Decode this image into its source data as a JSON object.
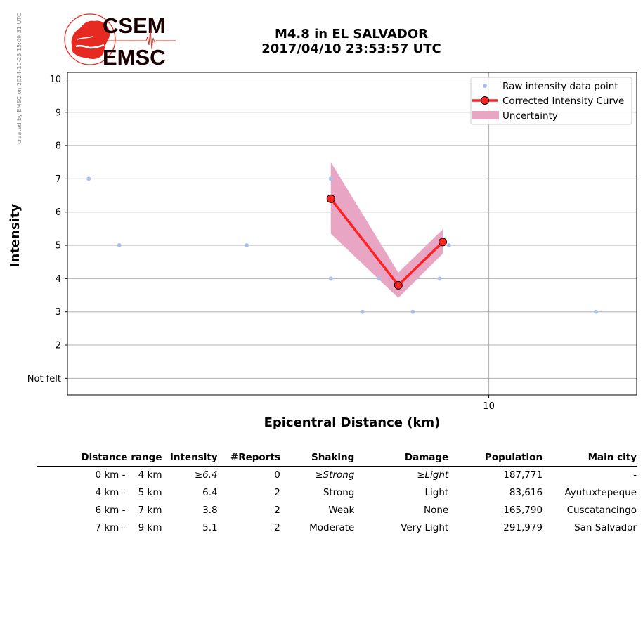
{
  "watermark": "created by EMSC on 2024-10-23 15:09:31 UTC",
  "logo": {
    "line1": "CSEM",
    "line2": "EMSC"
  },
  "header": {
    "title_line1": "M4.8 in EL SALVADOR",
    "title_line2": "2017/04/10 23:53:57 UTC"
  },
  "colors": {
    "raw_points": "#aec0ea",
    "curve": "#ff2020",
    "uncertainty": "#e8a6c4",
    "grid": "#b0b0b0",
    "logo_red": "#e62a22"
  },
  "chart_data": {
    "type": "line",
    "xlabel": "Epicentral Distance (km)",
    "ylabel": "Intensity",
    "x_scale": "log",
    "xlim": [
      2.03,
      17.5
    ],
    "ylim": [
      0.5,
      10.2
    ],
    "x_ticks": [
      {
        "value": 10,
        "label": "10"
      }
    ],
    "y_ticks": [
      {
        "value": 1,
        "label": "Not felt"
      },
      {
        "value": 2,
        "label": "2"
      },
      {
        "value": 3,
        "label": "3"
      },
      {
        "value": 4,
        "label": "4"
      },
      {
        "value": 5,
        "label": "5"
      },
      {
        "value": 6,
        "label": "6"
      },
      {
        "value": 7,
        "label": "7"
      },
      {
        "value": 8,
        "label": "8"
      },
      {
        "value": 9,
        "label": "9"
      },
      {
        "value": 10,
        "label": "10"
      }
    ],
    "grid": true,
    "legend_position": "top-right",
    "legend": [
      "Raw intensity data point",
      "Corrected Intensity Curve",
      "Uncertainty"
    ],
    "series": [
      {
        "name": "Raw intensity data point",
        "kind": "scatter",
        "points": [
          [
            2.2,
            7
          ],
          [
            2.47,
            5
          ],
          [
            4.0,
            5
          ],
          [
            5.5,
            7
          ],
          [
            5.5,
            4
          ],
          [
            6.2,
            3
          ],
          [
            6.6,
            4
          ],
          [
            7.5,
            3
          ],
          [
            8.3,
            4
          ],
          [
            8.6,
            5
          ],
          [
            15.0,
            3
          ]
        ]
      },
      {
        "name": "Corrected Intensity Curve",
        "kind": "line",
        "points": [
          [
            5.5,
            6.4
          ],
          [
            7.1,
            3.8
          ],
          [
            8.4,
            5.1
          ]
        ]
      },
      {
        "name": "Uncertainty",
        "kind": "band",
        "x": [
          5.5,
          7.1,
          8.4
        ],
        "lower": [
          5.35,
          3.42,
          4.75
        ],
        "upper": [
          7.5,
          4.18,
          5.48
        ]
      }
    ]
  },
  "table": {
    "headers": [
      "Distance range",
      "Intensity",
      "#Reports",
      "Shaking",
      "Damage",
      "Population",
      "Main city"
    ],
    "rows": [
      {
        "from": "0 km -",
        "to": "4 km",
        "intensity": "≥6.4",
        "reports": "0",
        "shaking": "≥Strong",
        "damage": "≥Light",
        "population": "187,771",
        "city": "-"
      },
      {
        "from": "4 km -",
        "to": "5 km",
        "intensity": "6.4",
        "reports": "2",
        "shaking": "Strong",
        "damage": "Light",
        "population": "83,616",
        "city": "Ayutuxtepeque"
      },
      {
        "from": "6 km -",
        "to": "7 km",
        "intensity": "3.8",
        "reports": "2",
        "shaking": "Weak",
        "damage": "None",
        "population": "165,790",
        "city": "Cuscatancingo"
      },
      {
        "from": "7 km -",
        "to": "9 km",
        "intensity": "5.1",
        "reports": "2",
        "shaking": "Moderate",
        "damage": "Very Light",
        "population": "291,979",
        "city": "San Salvador"
      }
    ]
  }
}
